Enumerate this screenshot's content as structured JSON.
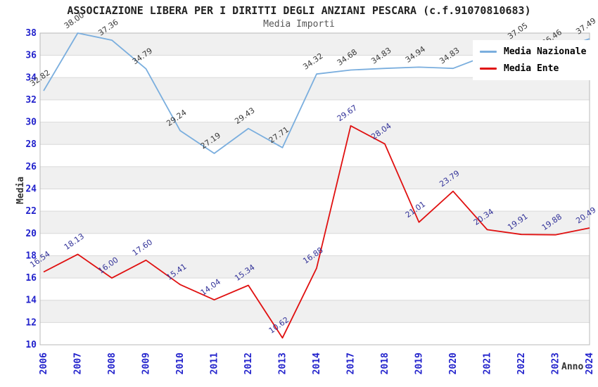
{
  "title": "ASSOCIAZIONE LIBERA PER I DIRITTI DEGLI ANZIANI PESCARA (c.f.91070810683)",
  "subtitle": "Media Importi",
  "chart_data": {
    "type": "line",
    "categories": [
      "2006",
      "2007",
      "2008",
      "2009",
      "2010",
      "2011",
      "2012",
      "2013",
      "2014",
      "2017",
      "2018",
      "2019",
      "2020",
      "2021",
      "2022",
      "2023",
      "2024"
    ],
    "series": [
      {
        "name": "Media Nazionale",
        "color": "#7aaede",
        "label_color": "#3a3a3a",
        "values": [
          32.82,
          38.0,
          37.36,
          34.79,
          29.24,
          27.19,
          29.43,
          27.71,
          34.32,
          34.68,
          34.83,
          34.94,
          34.83,
          36.0,
          37.05,
          36.46,
          37.49
        ],
        "labels": [
          "32.82",
          "38.00",
          "37.36",
          "34.79",
          "29.24",
          "27.19",
          "29.43",
          "27.71",
          "34.32",
          "34.68",
          "34.83",
          "34.94",
          "34.83",
          "",
          "37.05",
          "36.46",
          "37.49"
        ]
      },
      {
        "name": "Media Ente",
        "color": "#e01010",
        "label_color": "#333399",
        "values": [
          16.54,
          18.13,
          16.0,
          17.6,
          15.41,
          14.04,
          15.34,
          10.62,
          16.88,
          29.67,
          28.04,
          21.01,
          23.79,
          20.34,
          19.91,
          19.88,
          20.49
        ],
        "labels": [
          "16.54",
          "18.13",
          "16.00",
          "17.60",
          "15.41",
          "14.04",
          "15.34",
          "10.62",
          "16.88",
          "29.67",
          "28.04",
          "21.01",
          "23.79",
          "20.34",
          "19.91",
          "19.88",
          "20.49"
        ]
      }
    ],
    "xlabel": "Anno",
    "ylabel": "Media",
    "ylim": [
      10,
      38
    ],
    "ytick_step": 2,
    "grid": "horizontal-bands",
    "band_gray": "#f0f0f0",
    "gridline_color": "#d9d9d9",
    "plot_border_color": "#b8b8b8",
    "tick_color": "#2222cc",
    "legend_position": "top-right"
  }
}
